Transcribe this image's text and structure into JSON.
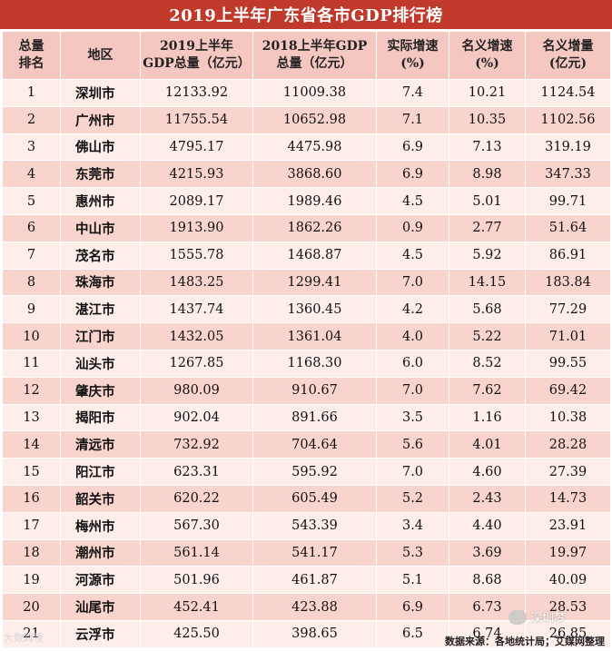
{
  "title": "2019上半年广东省各市GDP排行榜",
  "headers": [
    "总量\n排名",
    "地区",
    "2019上半年\nGDP总量（亿元）",
    "2018上半年GDP\n总量（亿元）",
    "实际增速\n(%)",
    "名义增速\n(%)",
    "名义增量\n(亿元)"
  ],
  "footer": "数据来源：各地统计局；艾媒网整理",
  "watermark_left": "大数跨境",
  "watermark_right": "深圳梦",
  "chart_data": {
    "type": "table",
    "title": "2019上半年广东省各市GDP排行榜",
    "columns": [
      "总量排名",
      "地区",
      "2019上半年GDP总量（亿元）",
      "2018上半年GDP总量（亿元）",
      "实际增速(%)",
      "名义增速(%)",
      "名义增量(亿元)"
    ],
    "rows": [
      [
        "1",
        "深圳市",
        "12133.92",
        "11009.38",
        "7.4",
        "10.21",
        "1124.54"
      ],
      [
        "2",
        "广州市",
        "11755.54",
        "10652.98",
        "7.1",
        "10.35",
        "1102.56"
      ],
      [
        "3",
        "佛山市",
        "4795.17",
        "4475.98",
        "6.9",
        "7.13",
        "319.19"
      ],
      [
        "4",
        "东莞市",
        "4215.93",
        "3868.60",
        "6.9",
        "8.98",
        "347.33"
      ],
      [
        "5",
        "惠州市",
        "2089.17",
        "1989.46",
        "4.5",
        "5.01",
        "99.71"
      ],
      [
        "6",
        "中山市",
        "1913.90",
        "1862.26",
        "0.9",
        "2.77",
        "51.64"
      ],
      [
        "7",
        "茂名市",
        "1555.78",
        "1468.87",
        "4.5",
        "5.92",
        "86.91"
      ],
      [
        "8",
        "珠海市",
        "1483.25",
        "1299.41",
        "7.0",
        "14.15",
        "183.84"
      ],
      [
        "9",
        "湛江市",
        "1437.74",
        "1360.45",
        "4.2",
        "5.68",
        "77.29"
      ],
      [
        "10",
        "江门市",
        "1432.05",
        "1361.04",
        "4.0",
        "5.22",
        "71.01"
      ],
      [
        "11",
        "汕头市",
        "1267.85",
        "1168.30",
        "6.0",
        "8.52",
        "99.55"
      ],
      [
        "12",
        "肇庆市",
        "980.09",
        "910.67",
        "7.0",
        "7.62",
        "69.42"
      ],
      [
        "13",
        "揭阳市",
        "902.04",
        "891.66",
        "3.5",
        "1.16",
        "10.38"
      ],
      [
        "14",
        "清远市",
        "732.92",
        "704.64",
        "5.6",
        "4.01",
        "28.28"
      ],
      [
        "15",
        "阳江市",
        "623.31",
        "595.92",
        "7.0",
        "4.60",
        "27.39"
      ],
      [
        "16",
        "韶关市",
        "620.22",
        "605.49",
        "5.2",
        "2.43",
        "14.73"
      ],
      [
        "17",
        "梅州市",
        "567.30",
        "543.39",
        "3.4",
        "4.40",
        "23.91"
      ],
      [
        "18",
        "潮州市",
        "561.14",
        "541.17",
        "5.3",
        "3.69",
        "19.97"
      ],
      [
        "19",
        "河源市",
        "501.96",
        "461.87",
        "5.1",
        "8.68",
        "40.09"
      ],
      [
        "20",
        "汕尾市",
        "452.41",
        "423.88",
        "6.9",
        "6.73",
        "28.53"
      ],
      [
        "21",
        "云浮市",
        "425.50",
        "398.65",
        "6.5",
        "6.74",
        "26.85"
      ]
    ]
  }
}
